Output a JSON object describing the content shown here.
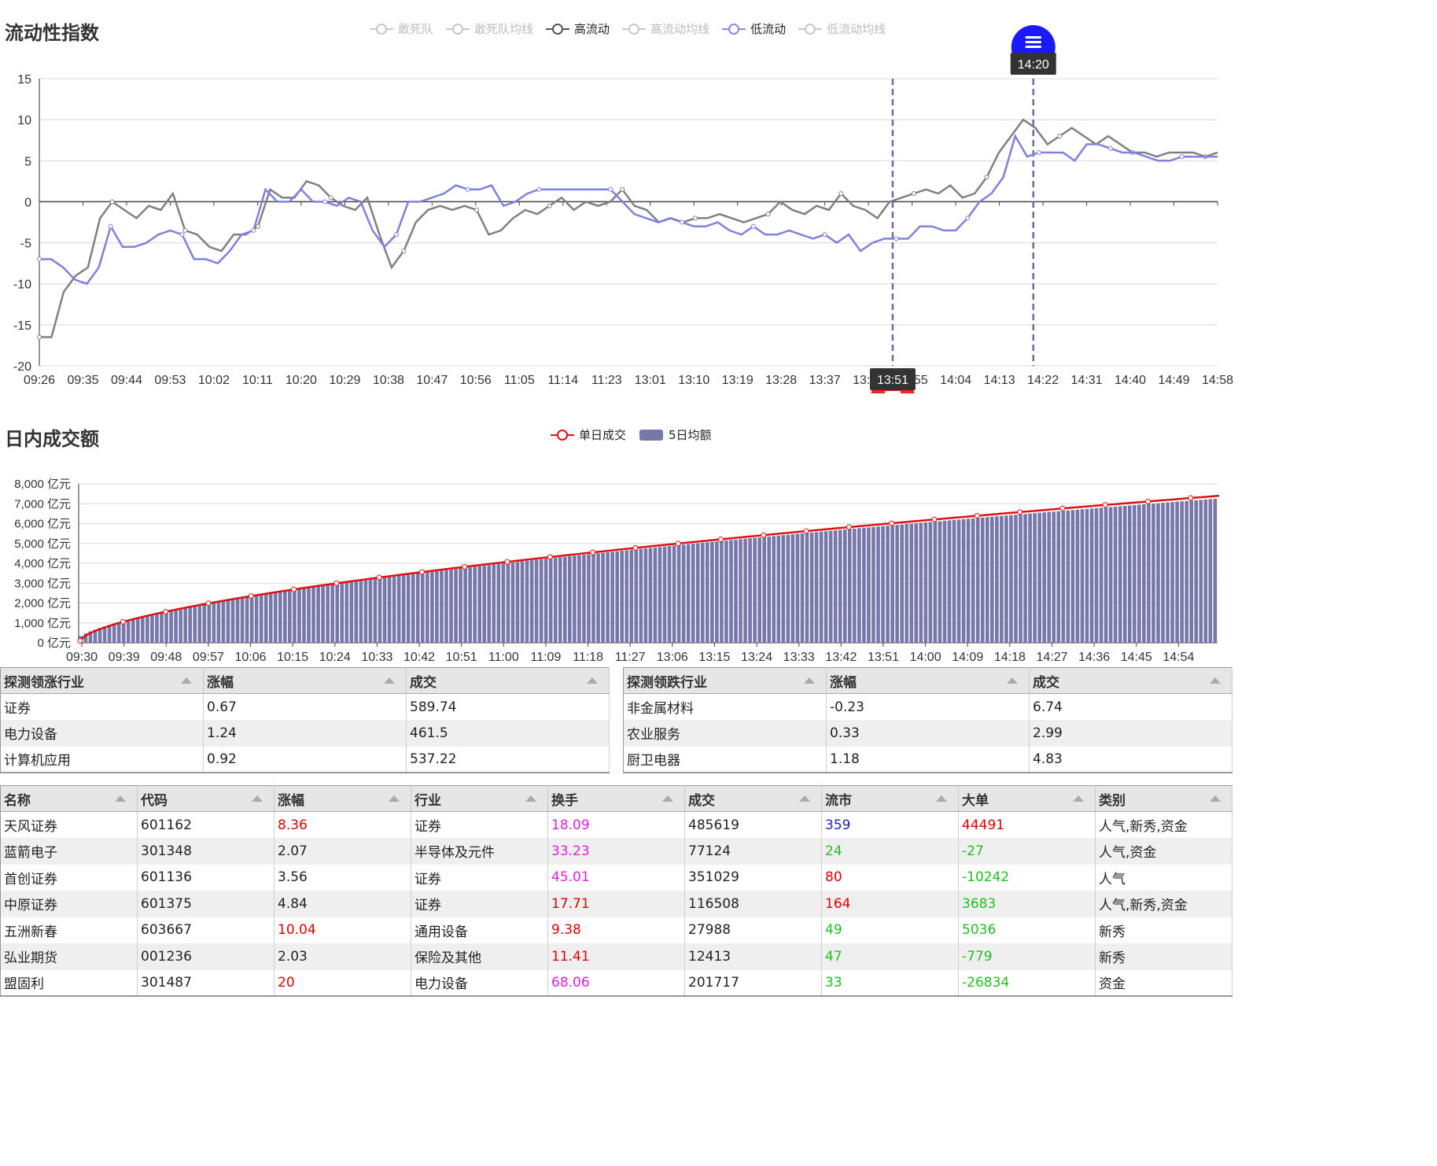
{
  "liquidity": {
    "title": "流动性指数",
    "legend": [
      {
        "label": "敢死队",
        "color": "#c8c8c8",
        "active": false
      },
      {
        "label": "敢死队均线",
        "color": "#c8c8c8",
        "active": false
      },
      {
        "label": "高流动",
        "color": "#555555",
        "active": true
      },
      {
        "label": "高流动均线",
        "color": "#c8c8c8",
        "active": false
      },
      {
        "label": "低流动",
        "color": "#8888ee",
        "active": true
      },
      {
        "label": "低流动均线",
        "color": "#c8c8c8",
        "active": false
      }
    ],
    "marker_top": {
      "label": "14:20",
      "color": "#1a1aff"
    },
    "marker_bottom": {
      "label": "13:51",
      "color": "#ff2020"
    }
  },
  "turnover": {
    "title": "日内成交额",
    "legend": [
      {
        "label": "单日成交",
        "color": "#dd1111"
      },
      {
        "label": "5日均额",
        "color": "#7777aa"
      }
    ]
  },
  "chart_data": [
    {
      "type": "line",
      "title": "流动性指数",
      "ylim": [
        -20,
        15
      ],
      "yticks": [
        "15",
        "10",
        "5",
        "0",
        "-5",
        "-10",
        "-15",
        "-20"
      ],
      "yticks_values": [
        15,
        10,
        5,
        0,
        -5,
        -10,
        -15,
        -20
      ],
      "xticks": [
        "09:26",
        "09:35",
        "09:44",
        "09:53",
        "10:02",
        "10:11",
        "10:20",
        "10:29",
        "10:38",
        "10:47",
        "10:56",
        "11:05",
        "11:14",
        "11:23",
        "13:01",
        "13:10",
        "13:19",
        "13:28",
        "13:37",
        "13:46",
        "13:55",
        "14:04",
        "14:13",
        "14:22",
        "14:31",
        "14:40",
        "14:49",
        "14:58"
      ],
      "vlines": [
        "13:51",
        "14:20"
      ],
      "series": [
        {
          "name": "高流动",
          "color": "#808080",
          "values": [
            -16.5,
            -16.5,
            -11,
            -9,
            -8,
            -2,
            0,
            -1,
            -2,
            -0.5,
            -1,
            1,
            -3.5,
            -4,
            -5.5,
            -6,
            -4,
            -4,
            -3,
            1.5,
            0.5,
            0.5,
            2.5,
            2,
            0.5,
            -0.5,
            -1,
            0.5,
            -4,
            -8,
            -6,
            -2.5,
            -1,
            -0.5,
            -1,
            -0.5,
            -1,
            -4,
            -3.5,
            -2,
            -1,
            -1.5,
            -0.5,
            0.5,
            -1,
            0,
            -0.5,
            0,
            1.5,
            -0.5,
            -1,
            -2.5,
            -2,
            -2.5,
            -2,
            -2,
            -1.5,
            -2,
            -2.5,
            -2,
            -1.5,
            0,
            -1,
            -1.5,
            -0.5,
            -1,
            1,
            -0.5,
            -1,
            -2,
            0,
            0.5,
            1,
            1.5,
            1,
            2,
            0.5,
            1,
            3,
            6,
            8,
            10,
            9,
            7,
            8,
            9,
            8,
            7,
            8,
            7,
            6,
            6,
            5.5,
            6,
            6,
            6,
            5.5,
            6
          ]
        },
        {
          "name": "低流动",
          "color": "#8080e0",
          "values": [
            -7,
            -7,
            -8,
            -9.5,
            -10,
            -8,
            -3,
            -5.5,
            -5.5,
            -5,
            -4,
            -3.5,
            -4,
            -7,
            -7,
            -7.5,
            -6,
            -4,
            -3.5,
            1.5,
            0,
            0,
            1.5,
            0,
            0,
            -0.5,
            0.5,
            0,
            -3.5,
            -5.5,
            -4,
            0,
            0,
            0.5,
            1,
            2,
            1.5,
            1.5,
            2,
            -0.5,
            0,
            1,
            1.5,
            1.5,
            1.5,
            1.5,
            1.5,
            1.5,
            1.5,
            0,
            -1.5,
            -2,
            -2.5,
            -2,
            -2.5,
            -3,
            -3,
            -2.5,
            -3.5,
            -4,
            -3,
            -4,
            -4,
            -3.5,
            -4,
            -4.5,
            -4,
            -5,
            -4,
            -6,
            -5,
            -4.5,
            -4.5,
            -4.5,
            -3,
            -3,
            -3.5,
            -3.5,
            -2,
            0,
            1,
            3,
            8,
            5.5,
            6,
            6,
            6,
            5,
            7,
            7,
            6.5,
            6,
            6,
            5.5,
            5,
            5,
            5.5,
            5.5,
            5.5,
            5.5
          ]
        }
      ]
    },
    {
      "type": "bar",
      "title": "日内成交额",
      "ylim": [
        0,
        8000
      ],
      "ylabel_unit": "亿元",
      "yticks": [
        "8,000 亿元",
        "7,000 亿元",
        "6,000 亿元",
        "5,000 亿元",
        "4,000 亿元",
        "3,000 亿元",
        "2,000 亿元",
        "1,000 亿元",
        "0 亿元"
      ],
      "yticks_values": [
        8000,
        7000,
        6000,
        5000,
        4000,
        3000,
        2000,
        1000,
        0
      ],
      "xticks": [
        "09:30",
        "09:39",
        "09:48",
        "09:57",
        "10:06",
        "10:15",
        "10:24",
        "10:33",
        "10:42",
        "10:51",
        "11:00",
        "11:09",
        "11:18",
        "11:27",
        "13:06",
        "13:15",
        "13:24",
        "13:33",
        "13:42",
        "13:51",
        "14:00",
        "14:09",
        "14:18",
        "14:27",
        "14:36",
        "14:45",
        "14:54"
      ],
      "series": [
        {
          "name": "单日成交",
          "type": "line",
          "color": "#dd1111",
          "start": 100,
          "end": 7400
        },
        {
          "name": "5日均额",
          "type": "bar",
          "color": "#7777aa",
          "start": 100,
          "end": 7250
        }
      ]
    }
  ],
  "rise_table": {
    "headers": [
      "探测领涨行业",
      "涨幅",
      "成交"
    ],
    "rows": [
      [
        "证券",
        "0.67",
        "589.74"
      ],
      [
        "电力设备",
        "1.24",
        "461.5"
      ],
      [
        "计算机应用",
        "0.92",
        "537.22"
      ]
    ]
  },
  "fall_table": {
    "headers": [
      "探测领跌行业",
      "涨幅",
      "成交"
    ],
    "rows": [
      [
        "非金属材料",
        "-0.23",
        "6.74"
      ],
      [
        "农业服务",
        "0.33",
        "2.99"
      ],
      [
        "厨卫电器",
        "1.18",
        "4.83"
      ]
    ]
  },
  "stock_table": {
    "headers": [
      "名称",
      "代码",
      "涨幅",
      "行业",
      "换手",
      "成交",
      "流市",
      "大单",
      "类别"
    ],
    "rows": [
      {
        "cells": [
          "天风证券",
          "601162",
          "8.36",
          "证券",
          "18.09",
          "485619",
          "359",
          "44491",
          "人气,新秀,资金"
        ],
        "colors": [
          "",
          "",
          "#e00000",
          "",
          "#e020e0",
          "",
          "#2020c0",
          "#e00000",
          ""
        ]
      },
      {
        "cells": [
          "蓝箭电子",
          "301348",
          "2.07",
          "半导体及元件",
          "33.23",
          "77124",
          "24",
          "-27",
          "人气,资金"
        ],
        "colors": [
          "",
          "",
          "",
          "",
          "#e020e0",
          "",
          "#20c020",
          "#20c020",
          ""
        ]
      },
      {
        "cells": [
          "首创证券",
          "601136",
          "3.56",
          "证券",
          "45.01",
          "351029",
          "80",
          "-10242",
          "人气"
        ],
        "colors": [
          "",
          "",
          "",
          "",
          "#e020e0",
          "",
          "#e00000",
          "#20c020",
          ""
        ]
      },
      {
        "cells": [
          "中原证券",
          "601375",
          "4.84",
          "证券",
          "17.71",
          "116508",
          "164",
          "3683",
          "人气,新秀,资金"
        ],
        "colors": [
          "",
          "",
          "",
          "",
          "#e00000",
          "",
          "#e00000",
          "#20c020",
          ""
        ]
      },
      {
        "cells": [
          "五洲新春",
          "603667",
          "10.04",
          "通用设备",
          "9.38",
          "27988",
          "49",
          "5036",
          "新秀"
        ],
        "colors": [
          "",
          "",
          "#e00000",
          "",
          "#e00000",
          "",
          "#20c020",
          "#20c020",
          ""
        ]
      },
      {
        "cells": [
          "弘业期货",
          "001236",
          "2.03",
          "保险及其他",
          "11.41",
          "12413",
          "47",
          "-779",
          "新秀"
        ],
        "colors": [
          "",
          "",
          "",
          "",
          "#e00000",
          "",
          "#20c020",
          "#20c020",
          ""
        ]
      },
      {
        "cells": [
          "盟固利",
          "301487",
          "20",
          "电力设备",
          "68.06",
          "201717",
          "33",
          "-26834",
          "资金"
        ],
        "colors": [
          "",
          "",
          "#e00000",
          "",
          "#e020e0",
          "",
          "#20c020",
          "#20c020",
          ""
        ]
      }
    ]
  }
}
